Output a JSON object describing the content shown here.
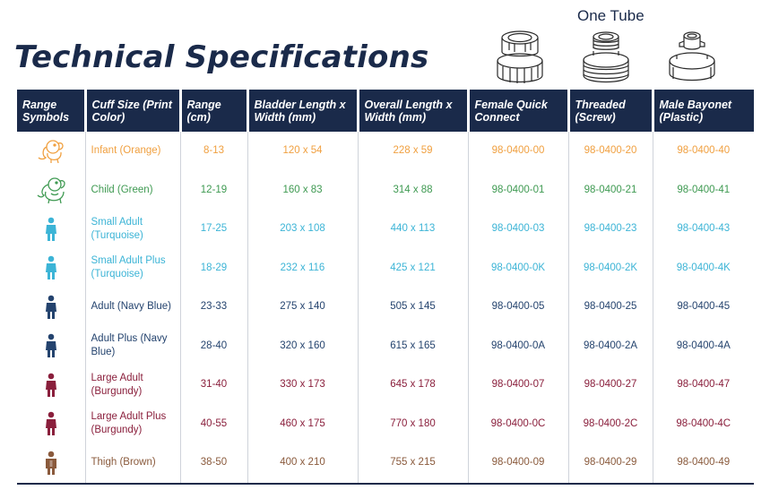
{
  "title": "Technical Specifications",
  "connector_group_label": "One Tube",
  "connector_icons": [
    "female-quick-connect-fitting-icon",
    "threaded-screw-fitting-icon",
    "male-bayonet-fitting-icon"
  ],
  "header": {
    "range_symbols": "Range Symbols",
    "cuff_size": "Cuff Size (Print Color)",
    "range_cm": "Range (cm)",
    "bladder": "Bladder Length x Width (mm)",
    "overall": "Overall Length x Width (mm)",
    "female_quick_connect": "Female Quick Connect",
    "threaded": "Threaded (Screw)",
    "male_bayonet": "Male Bayonet (Plastic)"
  },
  "colors": {
    "header_bg": "#1a2a4a",
    "infant": "#f0a040",
    "child": "#3f9a52",
    "turquoise": "#3cb4d6",
    "navy": "#24436e",
    "burgundy": "#8a1f3c",
    "brown": "#8a5a3c"
  },
  "rows": [
    {
      "symbol": "infant-elephant-icon",
      "color": "#f0a040",
      "size": "Infant (Orange)",
      "range": "8-13",
      "bladder": "120 x 54",
      "overall": "228 x 59",
      "female": "98-0400-00",
      "threaded": "98-0400-20",
      "male": "98-0400-40"
    },
    {
      "symbol": "child-elephant-icon",
      "color": "#3f9a52",
      "size": "Child (Green)",
      "range": "12-19",
      "bladder": "160 x 83",
      "overall": "314 x 88",
      "female": "98-0400-01",
      "threaded": "98-0400-21",
      "male": "98-0400-41"
    },
    {
      "symbol": "person-icon",
      "color": "#3cb4d6",
      "size": "Small Adult (Turquoise)",
      "range": "17-25",
      "bladder": "203 x 108",
      "overall": "440 x 113",
      "female": "98-0400-03",
      "threaded": "98-0400-23",
      "male": "98-0400-43"
    },
    {
      "symbol": "person-icon",
      "color": "#3cb4d6",
      "size": "Small Adult Plus (Turquoise)",
      "range": "18-29",
      "bladder": "232 x 116",
      "overall": "425 x 121",
      "female": "98-0400-0K",
      "threaded": "98-0400-2K",
      "male": "98-0400-4K"
    },
    {
      "symbol": "person-icon",
      "color": "#24436e",
      "size": "Adult (Navy Blue)",
      "range": "23-33",
      "bladder": "275 x 140",
      "overall": "505 x 145",
      "female": "98-0400-05",
      "threaded": "98-0400-25",
      "male": "98-0400-45"
    },
    {
      "symbol": "person-icon",
      "color": "#24436e",
      "size": "Adult Plus (Navy Blue)",
      "range": "28-40",
      "bladder": "320 x 160",
      "overall": "615 x 165",
      "female": "98-0400-0A",
      "threaded": "98-0400-2A",
      "male": "98-0400-4A"
    },
    {
      "symbol": "person-icon",
      "color": "#8a1f3c",
      "size": "Large Adult (Burgundy)",
      "range": "31-40",
      "bladder": "330 x 173",
      "overall": "645 x 178",
      "female": "98-0400-07",
      "threaded": "98-0400-27",
      "male": "98-0400-47"
    },
    {
      "symbol": "person-icon",
      "color": "#8a1f3c",
      "size": "Large  Adult Plus (Burgundy)",
      "range": "40-55",
      "bladder": "460 x 175",
      "overall": "770 x 180",
      "female": "98-0400-0C",
      "threaded": "98-0400-2C",
      "male": "98-0400-4C"
    },
    {
      "symbol": "thigh-person-icon",
      "color": "#8a5a3c",
      "size": "Thigh (Brown)",
      "range": "38-50",
      "bladder": "400 x 210",
      "overall": "755 x 215",
      "female": "98-0400-09",
      "threaded": "98-0400-29",
      "male": "98-0400-49"
    }
  ]
}
